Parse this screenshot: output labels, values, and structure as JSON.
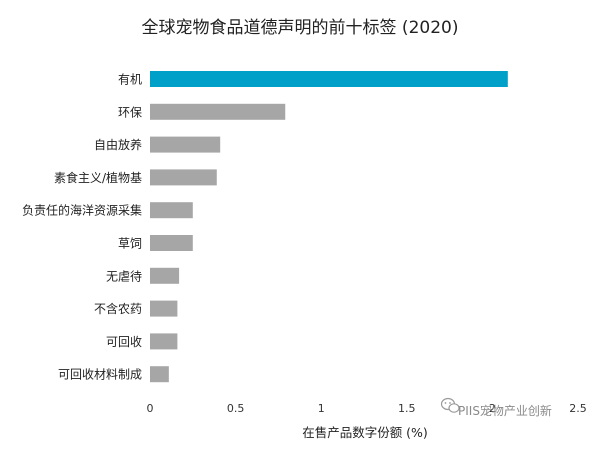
{
  "chart_data": {
    "type": "bar",
    "orientation": "horizontal",
    "title": "全球宠物食品道德声明的前十标签 (2020)",
    "xlabel": "在售产品数字份额 (%)",
    "ylabel": "",
    "xlim": [
      0,
      2.5
    ],
    "xticks": [
      0,
      0.5,
      1,
      1.5,
      2,
      2.5
    ],
    "xtick_labels": [
      "0",
      "0.5",
      "1",
      "1.5",
      "2",
      "2.5"
    ],
    "grid": false,
    "legend": "none",
    "categories": [
      "有机",
      "环保",
      "自由放养",
      "素食主义/植物基",
      "负责任的海洋资源采集",
      "草饲",
      "无虐待",
      "不含农药",
      "可回收",
      "可回收材料制成"
    ],
    "values": [
      2.09,
      0.79,
      0.41,
      0.39,
      0.25,
      0.25,
      0.17,
      0.16,
      0.16,
      0.11
    ],
    "bar_colors": [
      "#00a0c8",
      "#a6a6a6",
      "#a6a6a6",
      "#a6a6a6",
      "#a6a6a6",
      "#a6a6a6",
      "#a6a6a6",
      "#a6a6a6",
      "#a6a6a6",
      "#a6a6a6"
    ]
  },
  "watermark": {
    "text": "PIIS宠物产业创新",
    "icon": "wechat-icon"
  }
}
